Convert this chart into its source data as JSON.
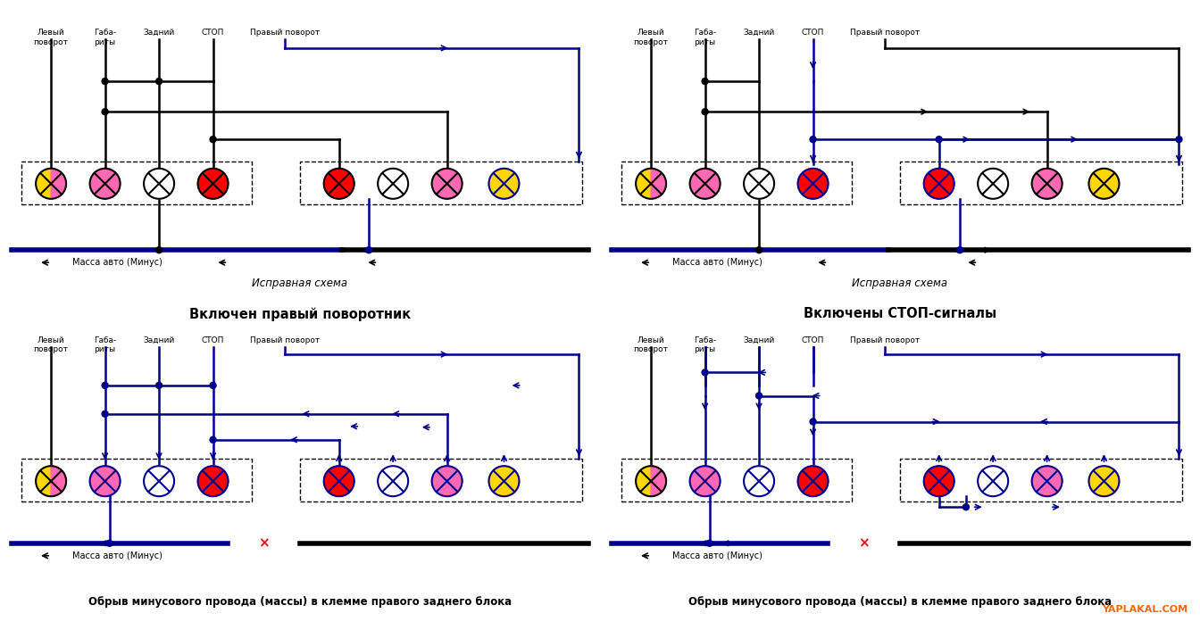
{
  "bg": "#ffffff",
  "black": "#000000",
  "blue": "#00008B",
  "red": "#FF0000",
  "yellow": "#FFD700",
  "pink": "#FF69B4",
  "orange_wm": "#FF6600",
  "fig_w": 13.44,
  "fig_h": 7.06,
  "dpi": 100,
  "panels": [
    {
      "col": 0,
      "row": 0,
      "scenario": 0,
      "title": "Исправная схема",
      "subtitle": "Включен правый поворотник"
    },
    {
      "col": 1,
      "row": 0,
      "scenario": 1,
      "title": "Исправная схема",
      "subtitle": "Включены СТОП-сигналы"
    },
    {
      "col": 0,
      "row": 1,
      "scenario": 2,
      "title": "Обрыв минусового провода (массы) в клемме правого заднего блока",
      "subtitle": null
    },
    {
      "col": 1,
      "row": 1,
      "scenario": 3,
      "title": "Обрыв минусового провода (массы) в клемме правого заднего блока",
      "subtitle": null
    }
  ]
}
